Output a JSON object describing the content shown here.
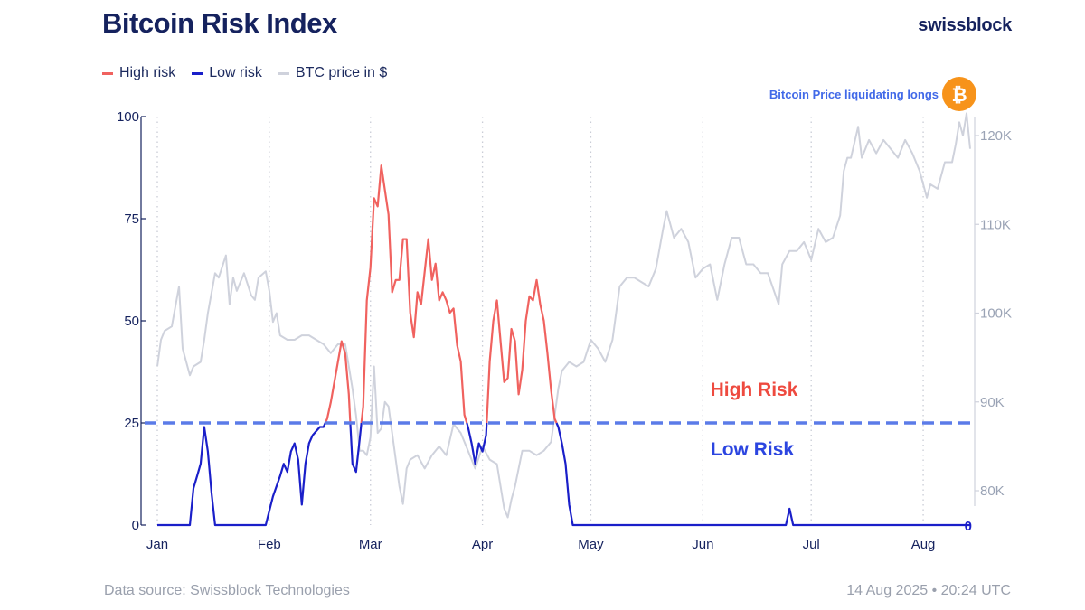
{
  "header": {
    "title": "Bitcoin Risk Index",
    "brand": "swissblock"
  },
  "legend": [
    {
      "label": "High risk",
      "color": "#f0625f"
    },
    {
      "label": "Low risk",
      "color": "#1a1fc9"
    },
    {
      "label": "BTC price in $",
      "color": "#cfd2dc"
    }
  ],
  "footer": {
    "source": "Data source: Swissblock Technologies",
    "timestamp": "14 Aug 2025 • 20:24 UTC"
  },
  "colors": {
    "high_risk": "#f0625f",
    "low_risk": "#1a1fc9",
    "price": "#cfd2dc",
    "threshold": "#5b7be8",
    "bitcoin_badge": "#f7931a",
    "annotation": "#4169e8"
  },
  "chart_data": {
    "type": "line",
    "title": "Bitcoin Risk Index",
    "x_axis": {
      "type": "date",
      "range": [
        "2025-01-01",
        "2025-08-14"
      ],
      "tick_labels": [
        "Jan",
        "Feb",
        "Mar",
        "Apr",
        "May",
        "Jun",
        "Jul",
        "Aug"
      ],
      "tick_dates": [
        "2025-01-01",
        "2025-02-01",
        "2025-03-01",
        "2025-04-01",
        "2025-05-01",
        "2025-06-01",
        "2025-07-01",
        "2025-08-01"
      ],
      "grid": "dotted vertical"
    },
    "y_left": {
      "range": [
        0,
        100
      ],
      "ticks": [
        0,
        25,
        50,
        75,
        100
      ],
      "tick_labels": [
        "0",
        "25",
        "50",
        "75",
        "100"
      ]
    },
    "y_right": {
      "range": [
        76000,
        122500
      ],
      "ticks": [
        80000,
        90000,
        100000,
        110000,
        120000
      ],
      "tick_labels": [
        "80K",
        "90K",
        "100K",
        "110K",
        "120K"
      ]
    },
    "threshold": {
      "value": 25,
      "style": "dashed"
    },
    "zone_labels": {
      "high": "High Risk",
      "low": "Low Risk"
    },
    "current_value_label": "0",
    "annotation": {
      "text": "Bitcoin Price liquidating longs",
      "icon": "bitcoin-icon",
      "icon_glyph": "₿"
    },
    "series": [
      {
        "name": "Risk index",
        "axis": "left",
        "note": "Drawn red where value > 25 (High risk) and blue where value <= 25 (Low risk)",
        "points": [
          [
            "2025-01-01",
            0
          ],
          [
            "2025-01-10",
            0
          ],
          [
            "2025-01-11",
            9
          ],
          [
            "2025-01-12",
            12
          ],
          [
            "2025-01-13",
            15
          ],
          [
            "2025-01-14",
            24
          ],
          [
            "2025-01-15",
            18
          ],
          [
            "2025-01-16",
            8
          ],
          [
            "2025-01-17",
            0
          ],
          [
            "2025-01-31",
            0
          ],
          [
            "2025-02-02",
            7
          ],
          [
            "2025-02-04",
            12
          ],
          [
            "2025-02-05",
            15
          ],
          [
            "2025-02-06",
            13
          ],
          [
            "2025-02-07",
            18
          ],
          [
            "2025-02-08",
            20
          ],
          [
            "2025-02-09",
            16
          ],
          [
            "2025-02-10",
            5
          ],
          [
            "2025-02-11",
            15
          ],
          [
            "2025-02-12",
            20
          ],
          [
            "2025-02-13",
            22
          ],
          [
            "2025-02-14",
            23
          ],
          [
            "2025-02-15",
            24
          ],
          [
            "2025-02-16",
            24
          ],
          [
            "2025-02-17",
            26
          ],
          [
            "2025-02-18",
            30
          ],
          [
            "2025-02-19",
            35
          ],
          [
            "2025-02-20",
            40
          ],
          [
            "2025-02-21",
            45
          ],
          [
            "2025-02-22",
            42
          ],
          [
            "2025-02-23",
            32
          ],
          [
            "2025-02-24",
            15
          ],
          [
            "2025-02-25",
            13
          ],
          [
            "2025-02-26",
            21
          ],
          [
            "2025-02-27",
            29
          ],
          [
            "2025-02-28",
            55
          ],
          [
            "2025-03-01",
            63
          ],
          [
            "2025-03-02",
            80
          ],
          [
            "2025-03-03",
            78
          ],
          [
            "2025-03-04",
            88
          ],
          [
            "2025-03-05",
            82
          ],
          [
            "2025-03-06",
            76
          ],
          [
            "2025-03-07",
            57
          ],
          [
            "2025-03-08",
            60
          ],
          [
            "2025-03-09",
            60
          ],
          [
            "2025-03-10",
            70
          ],
          [
            "2025-03-11",
            70
          ],
          [
            "2025-03-12",
            52
          ],
          [
            "2025-03-13",
            46
          ],
          [
            "2025-03-14",
            57
          ],
          [
            "2025-03-15",
            54
          ],
          [
            "2025-03-16",
            62
          ],
          [
            "2025-03-17",
            70
          ],
          [
            "2025-03-18",
            60
          ],
          [
            "2025-03-19",
            64
          ],
          [
            "2025-03-20",
            55
          ],
          [
            "2025-03-21",
            57
          ],
          [
            "2025-03-22",
            55
          ],
          [
            "2025-03-23",
            52
          ],
          [
            "2025-03-24",
            53
          ],
          [
            "2025-03-25",
            44
          ],
          [
            "2025-03-26",
            40
          ],
          [
            "2025-03-27",
            27
          ],
          [
            "2025-03-28",
            24
          ],
          [
            "2025-03-29",
            20
          ],
          [
            "2025-03-30",
            15
          ],
          [
            "2025-03-31",
            20
          ],
          [
            "2025-04-01",
            18
          ],
          [
            "2025-04-02",
            22
          ],
          [
            "2025-04-03",
            40
          ],
          [
            "2025-04-04",
            50
          ],
          [
            "2025-04-05",
            55
          ],
          [
            "2025-04-06",
            45
          ],
          [
            "2025-04-07",
            35
          ],
          [
            "2025-04-08",
            36
          ],
          [
            "2025-04-09",
            48
          ],
          [
            "2025-04-10",
            45
          ],
          [
            "2025-04-11",
            32
          ],
          [
            "2025-04-12",
            38
          ],
          [
            "2025-04-13",
            50
          ],
          [
            "2025-04-14",
            56
          ],
          [
            "2025-04-15",
            55
          ],
          [
            "2025-04-16",
            60
          ],
          [
            "2025-04-17",
            54
          ],
          [
            "2025-04-18",
            50
          ],
          [
            "2025-04-19",
            42
          ],
          [
            "2025-04-20",
            33
          ],
          [
            "2025-04-21",
            26
          ],
          [
            "2025-04-22",
            24
          ],
          [
            "2025-04-23",
            20
          ],
          [
            "2025-04-24",
            15
          ],
          [
            "2025-04-25",
            5
          ],
          [
            "2025-04-26",
            0
          ],
          [
            "2025-06-24",
            0
          ],
          [
            "2025-06-25",
            4
          ],
          [
            "2025-06-26",
            0
          ],
          [
            "2025-08-14",
            0
          ]
        ]
      },
      {
        "name": "BTC price in $",
        "axis": "right",
        "points": [
          [
            "2025-01-01",
            94000
          ],
          [
            "2025-01-02",
            97000
          ],
          [
            "2025-01-03",
            98000
          ],
          [
            "2025-01-05",
            98500
          ],
          [
            "2025-01-07",
            103000
          ],
          [
            "2025-01-08",
            96000
          ],
          [
            "2025-01-09",
            94500
          ],
          [
            "2025-01-10",
            93000
          ],
          [
            "2025-01-11",
            94000
          ],
          [
            "2025-01-13",
            94500
          ],
          [
            "2025-01-14",
            97000
          ],
          [
            "2025-01-15",
            100000
          ],
          [
            "2025-01-17",
            104500
          ],
          [
            "2025-01-18",
            104000
          ],
          [
            "2025-01-20",
            106500
          ],
          [
            "2025-01-21",
            101000
          ],
          [
            "2025-01-22",
            104000
          ],
          [
            "2025-01-23",
            102500
          ],
          [
            "2025-01-25",
            104500
          ],
          [
            "2025-01-27",
            102000
          ],
          [
            "2025-01-28",
            101500
          ],
          [
            "2025-01-29",
            104000
          ],
          [
            "2025-01-31",
            104700
          ],
          [
            "2025-02-01",
            102500
          ],
          [
            "2025-02-02",
            99000
          ],
          [
            "2025-02-03",
            100000
          ],
          [
            "2025-02-04",
            97500
          ],
          [
            "2025-02-06",
            97000
          ],
          [
            "2025-02-08",
            97000
          ],
          [
            "2025-02-10",
            97500
          ],
          [
            "2025-02-12",
            97500
          ],
          [
            "2025-02-14",
            97000
          ],
          [
            "2025-02-16",
            96500
          ],
          [
            "2025-02-18",
            95500
          ],
          [
            "2025-02-20",
            96500
          ],
          [
            "2025-02-22",
            96500
          ],
          [
            "2025-02-24",
            91500
          ],
          [
            "2025-02-25",
            88500
          ],
          [
            "2025-02-26",
            84500
          ],
          [
            "2025-02-27",
            84500
          ],
          [
            "2025-02-28",
            84000
          ],
          [
            "2025-03-01",
            86000
          ],
          [
            "2025-03-02",
            94000
          ],
          [
            "2025-03-03",
            86500
          ],
          [
            "2025-03-04",
            87000
          ],
          [
            "2025-03-05",
            90000
          ],
          [
            "2025-03-06",
            89500
          ],
          [
            "2025-03-07",
            86500
          ],
          [
            "2025-03-09",
            80500
          ],
          [
            "2025-03-10",
            78500
          ],
          [
            "2025-03-11",
            82500
          ],
          [
            "2025-03-12",
            83500
          ],
          [
            "2025-03-14",
            84000
          ],
          [
            "2025-03-16",
            82500
          ],
          [
            "2025-03-18",
            84000
          ],
          [
            "2025-03-20",
            85000
          ],
          [
            "2025-03-22",
            84000
          ],
          [
            "2025-03-24",
            87500
          ],
          [
            "2025-03-26",
            86500
          ],
          [
            "2025-03-28",
            84500
          ],
          [
            "2025-03-30",
            82500
          ],
          [
            "2025-04-01",
            85000
          ],
          [
            "2025-04-03",
            83500
          ],
          [
            "2025-04-05",
            83000
          ],
          [
            "2025-04-07",
            78000
          ],
          [
            "2025-04-08",
            77000
          ],
          [
            "2025-04-09",
            79000
          ],
          [
            "2025-04-10",
            80500
          ],
          [
            "2025-04-12",
            84500
          ],
          [
            "2025-04-14",
            84500
          ],
          [
            "2025-04-16",
            84000
          ],
          [
            "2025-04-18",
            84500
          ],
          [
            "2025-04-20",
            85500
          ],
          [
            "2025-04-22",
            91500
          ],
          [
            "2025-04-23",
            93500
          ],
          [
            "2025-04-25",
            94500
          ],
          [
            "2025-04-27",
            94000
          ],
          [
            "2025-04-29",
            94500
          ],
          [
            "2025-05-01",
            97000
          ],
          [
            "2025-05-03",
            96000
          ],
          [
            "2025-05-05",
            94500
          ],
          [
            "2025-05-07",
            97000
          ],
          [
            "2025-05-09",
            103000
          ],
          [
            "2025-05-11",
            104000
          ],
          [
            "2025-05-13",
            104000
          ],
          [
            "2025-05-15",
            103500
          ],
          [
            "2025-05-17",
            103000
          ],
          [
            "2025-05-19",
            105000
          ],
          [
            "2025-05-21",
            109500
          ],
          [
            "2025-05-22",
            111500
          ],
          [
            "2025-05-24",
            108500
          ],
          [
            "2025-05-26",
            109500
          ],
          [
            "2025-05-28",
            108000
          ],
          [
            "2025-05-30",
            104000
          ],
          [
            "2025-06-01",
            105000
          ],
          [
            "2025-06-03",
            105500
          ],
          [
            "2025-06-05",
            101500
          ],
          [
            "2025-06-07",
            105500
          ],
          [
            "2025-06-09",
            108500
          ],
          [
            "2025-06-11",
            108500
          ],
          [
            "2025-06-13",
            105500
          ],
          [
            "2025-06-15",
            105500
          ],
          [
            "2025-06-17",
            104500
          ],
          [
            "2025-06-19",
            104500
          ],
          [
            "2025-06-22",
            101000
          ],
          [
            "2025-06-23",
            105500
          ],
          [
            "2025-06-25",
            107000
          ],
          [
            "2025-06-27",
            107000
          ],
          [
            "2025-06-29",
            108000
          ],
          [
            "2025-07-01",
            106000
          ],
          [
            "2025-07-03",
            109500
          ],
          [
            "2025-07-05",
            108000
          ],
          [
            "2025-07-07",
            108500
          ],
          [
            "2025-07-09",
            111000
          ],
          [
            "2025-07-10",
            116000
          ],
          [
            "2025-07-11",
            117500
          ],
          [
            "2025-07-12",
            117500
          ],
          [
            "2025-07-14",
            121000
          ],
          [
            "2025-07-15",
            117500
          ],
          [
            "2025-07-17",
            119500
          ],
          [
            "2025-07-19",
            118000
          ],
          [
            "2025-07-21",
            119500
          ],
          [
            "2025-07-23",
            118500
          ],
          [
            "2025-07-25",
            117500
          ],
          [
            "2025-07-27",
            119500
          ],
          [
            "2025-07-29",
            118000
          ],
          [
            "2025-07-31",
            116000
          ],
          [
            "2025-08-02",
            113000
          ],
          [
            "2025-08-03",
            114500
          ],
          [
            "2025-08-05",
            114000
          ],
          [
            "2025-08-07",
            117000
          ],
          [
            "2025-08-09",
            117000
          ],
          [
            "2025-08-10",
            119000
          ],
          [
            "2025-08-11",
            121500
          ],
          [
            "2025-08-12",
            120000
          ],
          [
            "2025-08-13",
            122500
          ],
          [
            "2025-08-14",
            118500
          ]
        ]
      }
    ]
  }
}
